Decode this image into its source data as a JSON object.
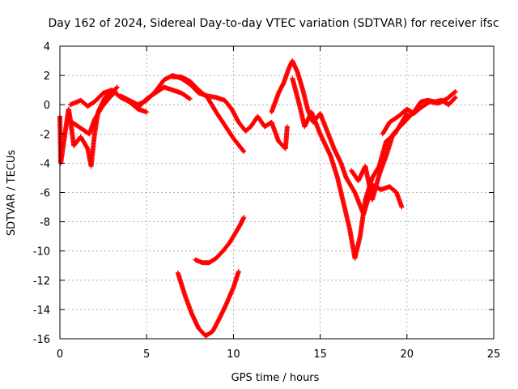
{
  "chart_data": {
    "type": "scatter",
    "title": "Day 162 of 2024, Sidereal Day-to-day VTEC variation (SDTVAR) for receiver ifsc",
    "xlabel": "GPS time / hours",
    "ylabel": "SDTVAR / TECUs",
    "xlim": [
      0,
      25
    ],
    "ylim": [
      -16,
      4
    ],
    "xticks": [
      "0",
      "5",
      "10",
      "15",
      "20",
      "25"
    ],
    "yticks": [
      "4",
      "2",
      "0",
      "-2",
      "-4",
      "-6",
      "-8",
      "-10",
      "-12",
      "-14",
      "-16"
    ],
    "grid": true,
    "marker": "+",
    "color": "#ff0000",
    "series": [
      {
        "name": "s1",
        "points": [
          [
            0.0,
            -0.8
          ],
          [
            0.05,
            -4.0
          ],
          [
            0.5,
            -0.3
          ],
          [
            0.6,
            -1.0
          ],
          [
            0.8,
            -2.8
          ],
          [
            1.2,
            -2.2
          ],
          [
            1.6,
            -3.0
          ],
          [
            1.8,
            -4.2
          ],
          [
            2.0,
            -2.0
          ],
          [
            2.2,
            -0.5
          ],
          [
            2.6,
            0.5
          ],
          [
            3.0,
            0.8
          ],
          [
            3.3,
            1.2
          ]
        ]
      },
      {
        "name": "s2",
        "points": [
          [
            0.6,
            0.0
          ],
          [
            1.2,
            0.3
          ],
          [
            1.6,
            -0.1
          ],
          [
            2.0,
            0.2
          ],
          [
            2.5,
            0.8
          ],
          [
            3.0,
            1.0
          ],
          [
            3.5,
            0.5
          ],
          [
            4.0,
            0.2
          ],
          [
            4.5,
            -0.3
          ],
          [
            5.0,
            -0.5
          ]
        ]
      },
      {
        "name": "s3",
        "points": [
          [
            0.7,
            -1.2
          ],
          [
            1.2,
            -1.6
          ],
          [
            1.7,
            -2.0
          ],
          [
            2.0,
            -1.0
          ],
          [
            2.4,
            -0.2
          ],
          [
            2.8,
            0.4
          ],
          [
            3.2,
            0.9
          ]
        ]
      },
      {
        "name": "s4",
        "points": [
          [
            3.5,
            0.6
          ],
          [
            4.0,
            0.3
          ],
          [
            4.5,
            0.0
          ],
          [
            5.0,
            0.3
          ],
          [
            5.5,
            0.9
          ],
          [
            6.0,
            1.7
          ],
          [
            6.5,
            2.0
          ],
          [
            7.0,
            1.8
          ],
          [
            7.5,
            1.4
          ],
          [
            8.0,
            0.8
          ],
          [
            8.5,
            0.6
          ],
          [
            9.0,
            0.5
          ],
          [
            9.5,
            0.3
          ],
          [
            9.9,
            -0.3
          ]
        ]
      },
      {
        "name": "s5",
        "points": [
          [
            4.5,
            -0.2
          ],
          [
            5.0,
            0.4
          ],
          [
            5.5,
            0.8
          ],
          [
            6.0,
            1.2
          ],
          [
            6.5,
            1.0
          ],
          [
            7.0,
            0.8
          ],
          [
            7.5,
            0.4
          ]
        ]
      },
      {
        "name": "s6",
        "points": [
          [
            6.5,
            1.9
          ],
          [
            7.0,
            1.9
          ],
          [
            7.5,
            1.6
          ],
          [
            8.0,
            1.0
          ],
          [
            8.5,
            0.5
          ],
          [
            9.0,
            -0.5
          ],
          [
            9.5,
            -1.4
          ],
          [
            10.0,
            -2.3
          ],
          [
            10.6,
            -3.2
          ]
        ]
      },
      {
        "name": "s7",
        "points": [
          [
            9.9,
            -0.3
          ],
          [
            10.3,
            -1.2
          ],
          [
            10.7,
            -1.8
          ],
          [
            11.0,
            -1.5
          ],
          [
            11.4,
            -0.8
          ],
          [
            11.8,
            -1.5
          ],
          [
            12.2,
            -1.2
          ],
          [
            12.6,
            -2.5
          ],
          [
            13.0,
            -3.0
          ],
          [
            13.1,
            -1.5
          ]
        ]
      },
      {
        "name": "s8",
        "points": [
          [
            12.2,
            -0.5
          ],
          [
            12.6,
            0.8
          ],
          [
            12.9,
            1.5
          ],
          [
            13.2,
            2.5
          ],
          [
            13.4,
            3.0
          ],
          [
            13.7,
            2.2
          ],
          [
            14.0,
            1.0
          ],
          [
            14.3,
            -0.4
          ],
          [
            14.6,
            -1.2
          ],
          [
            15.0,
            -0.6
          ],
          [
            15.4,
            -1.8
          ],
          [
            15.8,
            -3.0
          ],
          [
            16.2,
            -4.0
          ],
          [
            16.5,
            -5.0
          ]
        ]
      },
      {
        "name": "s9",
        "points": [
          [
            13.4,
            1.8
          ],
          [
            13.8,
            0.0
          ],
          [
            14.1,
            -1.5
          ],
          [
            14.5,
            -0.5
          ],
          [
            15.0,
            -2.0
          ],
          [
            15.6,
            -3.5
          ],
          [
            16.0,
            -5.0
          ],
          [
            16.4,
            -7.0
          ],
          [
            16.7,
            -8.5
          ],
          [
            17.0,
            -10.5
          ],
          [
            17.3,
            -9.0
          ],
          [
            17.6,
            -6.5
          ],
          [
            18.0,
            -5.0
          ],
          [
            18.4,
            -4.2
          ],
          [
            18.8,
            -2.5
          ],
          [
            19.3,
            -2.0
          ],
          [
            19.7,
            -1.2
          ],
          [
            20.0,
            -0.6
          ]
        ]
      },
      {
        "name": "s10",
        "points": [
          [
            16.5,
            -5.0
          ],
          [
            17.0,
            -6.0
          ],
          [
            17.5,
            -7.5
          ],
          [
            18.0,
            -5.5
          ],
          [
            18.5,
            -5.8
          ],
          [
            19.0,
            -5.6
          ],
          [
            19.4,
            -6.0
          ],
          [
            19.7,
            -7.0
          ]
        ]
      },
      {
        "name": "s11",
        "points": [
          [
            16.8,
            -4.5
          ],
          [
            17.2,
            -5.2
          ],
          [
            17.6,
            -4.2
          ],
          [
            18.0,
            -6.5
          ],
          [
            18.4,
            -4.8
          ],
          [
            18.8,
            -3.5
          ],
          [
            19.2,
            -2.0
          ],
          [
            19.6,
            -1.5
          ],
          [
            20.0,
            -1.0
          ],
          [
            20.4,
            -0.5
          ],
          [
            20.8,
            0.2
          ],
          [
            21.2,
            0.3
          ],
          [
            21.6,
            0.2
          ],
          [
            22.0,
            0.3
          ],
          [
            22.4,
            0.0
          ],
          [
            22.8,
            0.5
          ]
        ]
      },
      {
        "name": "s12",
        "points": [
          [
            18.6,
            -2.0
          ],
          [
            19.0,
            -1.2
          ],
          [
            19.5,
            -0.8
          ],
          [
            20.0,
            -0.3
          ],
          [
            20.4,
            -0.6
          ],
          [
            20.8,
            -0.2
          ],
          [
            21.3,
            0.2
          ],
          [
            21.8,
            0.1
          ],
          [
            22.3,
            0.4
          ],
          [
            22.8,
            0.9
          ]
        ]
      },
      {
        "name": "s13",
        "points": [
          [
            6.8,
            -11.5
          ],
          [
            7.2,
            -13.0
          ],
          [
            7.6,
            -14.3
          ],
          [
            8.0,
            -15.3
          ],
          [
            8.4,
            -15.8
          ],
          [
            8.8,
            -15.5
          ],
          [
            9.2,
            -14.6
          ],
          [
            9.6,
            -13.6
          ],
          [
            10.0,
            -12.5
          ],
          [
            10.3,
            -11.4
          ]
        ]
      },
      {
        "name": "s14",
        "points": [
          [
            7.8,
            -10.6
          ],
          [
            8.2,
            -10.8
          ],
          [
            8.6,
            -10.8
          ],
          [
            9.0,
            -10.5
          ],
          [
            9.4,
            -10.0
          ],
          [
            9.8,
            -9.4
          ],
          [
            10.1,
            -8.8
          ],
          [
            10.4,
            -8.2
          ],
          [
            10.6,
            -7.7
          ]
        ]
      }
    ]
  }
}
